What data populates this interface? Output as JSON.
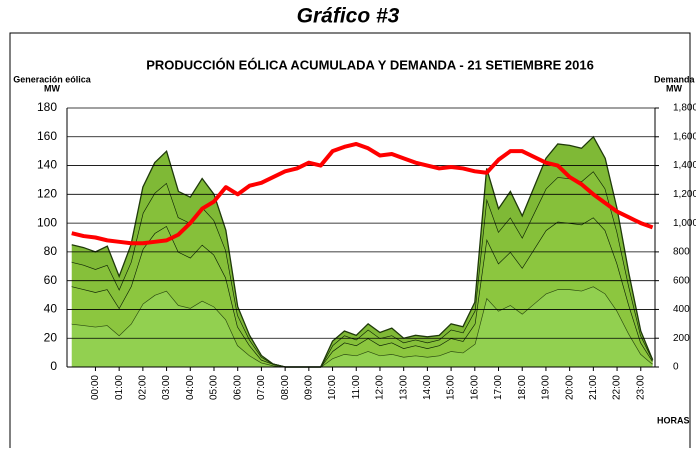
{
  "page_title": "Gráfico #3",
  "chart_data": {
    "type": "stacked-area-line",
    "title": "PRODUCCIÓN EÓLICA ACUMULADA Y DEMANDA - 21 SETIEMBRE 2016",
    "y_label": [
      "Generación eólica",
      "MW"
    ],
    "y2_label": [
      "Demanda",
      "MW"
    ],
    "x_label": "HORAS",
    "x": [
      -1,
      -0.5,
      0,
      0.5,
      1,
      1.5,
      2,
      2.5,
      3,
      3.5,
      4,
      4.5,
      5,
      5.5,
      6,
      6.5,
      7,
      7.5,
      8,
      8.5,
      9,
      9.5,
      10,
      10.5,
      11,
      11.5,
      12,
      12.5,
      13,
      13.5,
      14,
      14.5,
      15,
      15.5,
      16,
      16.5,
      17,
      17.5,
      18,
      18.5,
      19,
      19.5,
      20,
      20.5,
      21,
      21.5,
      22,
      22.5,
      23,
      23.5
    ],
    "xlim": [
      -1.2,
      23.6
    ],
    "xticks": [
      {
        "value": 0,
        "label": "00:00"
      },
      {
        "value": 1,
        "label": "01:00"
      },
      {
        "value": 2,
        "label": "02:00"
      },
      {
        "value": 3,
        "label": "03:00"
      },
      {
        "value": 4,
        "label": "04:00"
      },
      {
        "value": 5,
        "label": "05:00"
      },
      {
        "value": 6,
        "label": "06:00"
      },
      {
        "value": 7,
        "label": "07:00"
      },
      {
        "value": 8,
        "label": "08:00"
      },
      {
        "value": 9,
        "label": "09:00"
      },
      {
        "value": 10,
        "label": "10:00"
      },
      {
        "value": 11,
        "label": "11:00"
      },
      {
        "value": 12,
        "label": "12:00"
      },
      {
        "value": 13,
        "label": "13:00"
      },
      {
        "value": 14,
        "label": "14:00"
      },
      {
        "value": 15,
        "label": "15:00"
      },
      {
        "value": 16,
        "label": "16:00"
      },
      {
        "value": 17,
        "label": "17:00"
      },
      {
        "value": 18,
        "label": "18:00"
      },
      {
        "value": 19,
        "label": "19:00"
      },
      {
        "value": 20,
        "label": "20:00"
      },
      {
        "value": 21,
        "label": "21:00"
      },
      {
        "value": 22,
        "label": "22:00"
      },
      {
        "value": 23,
        "label": "23:00"
      }
    ],
    "ylim": [
      0,
      180
    ],
    "yticks": [
      0,
      20,
      40,
      60,
      80,
      100,
      120,
      140,
      160,
      180
    ],
    "y2lim": [
      0,
      1800
    ],
    "y2ticks": [
      0,
      200,
      400,
      600,
      800,
      {
        "value": 1000,
        "label": "1,000"
      },
      {
        "value": 1200,
        "label": "1,200"
      },
      {
        "value": 1400,
        "label": "1,400"
      },
      {
        "value": 1600,
        "label": "1,600"
      },
      {
        "value": 1800,
        "label": "1,800"
      }
    ],
    "grid": true,
    "series": [
      {
        "color": "#92d050",
        "line_color": "#2b4a10",
        "values": [
          30,
          29,
          28,
          29,
          22,
          30,
          44,
          50,
          53,
          43,
          41,
          46,
          42,
          33,
          15,
          8,
          3,
          1,
          0,
          0,
          0,
          0,
          6,
          9,
          8,
          11,
          8,
          9,
          7,
          8,
          7,
          8,
          11,
          10,
          16,
          48,
          39,
          43,
          37,
          44,
          51,
          54,
          54,
          53,
          56,
          51,
          39,
          23,
          9,
          2
        ]
      },
      {
        "color": "#8cc63f",
        "line_color": "#0f2405",
        "values": [
          26,
          25,
          24,
          25,
          19,
          26,
          38,
          43,
          45,
          37,
          35,
          39,
          36,
          29,
          13,
          7,
          2,
          1,
          0,
          0,
          0,
          0,
          5,
          8,
          7,
          9,
          7,
          8,
          6,
          7,
          6,
          7,
          9,
          8,
          14,
          41,
          33,
          37,
          32,
          38,
          44,
          47,
          46,
          46,
          48,
          44,
          33,
          20,
          8,
          2
        ]
      },
      {
        "color": "#86c03a",
        "line_color": "#0f2405",
        "values": [
          17,
          17,
          16,
          17,
          13,
          17,
          25,
          28,
          30,
          24,
          24,
          26,
          24,
          19,
          8,
          4,
          2,
          0,
          0,
          0,
          0,
          0,
          4,
          5,
          4,
          6,
          5,
          5,
          4,
          4,
          4,
          4,
          6,
          6,
          9,
          28,
          22,
          24,
          21,
          25,
          29,
          31,
          31,
          30,
          32,
          29,
          22,
          13,
          5,
          1
        ]
      },
      {
        "color": "#7fb936",
        "line_color": "#1f3a0a",
        "values": [
          12,
          12,
          12,
          13,
          9,
          12,
          18,
          21,
          22,
          18,
          18,
          20,
          18,
          14,
          6,
          3,
          1,
          0,
          0,
          0,
          0,
          0,
          3,
          3,
          3,
          4,
          4,
          5,
          3,
          3,
          4,
          3,
          4,
          4,
          6,
          21,
          16,
          18,
          15,
          18,
          21,
          23,
          23,
          23,
          24,
          21,
          16,
          9,
          3,
          0
        ]
      },
      {
        "axis": "y2",
        "color": "#ff0000",
        "values": [
          930,
          910,
          900,
          880,
          870,
          860,
          860,
          870,
          880,
          920,
          1000,
          1100,
          1150,
          1250,
          1200,
          1260,
          1280,
          1320,
          1360,
          1380,
          1420,
          1400,
          1500,
          1530,
          1550,
          1520,
          1470,
          1480,
          1450,
          1420,
          1400,
          1380,
          1390,
          1380,
          1360,
          1350,
          1440,
          1500,
          1500,
          1460,
          1420,
          1400,
          1320,
          1270,
          1200,
          1140,
          1080,
          1040,
          1000,
          970
        ]
      }
    ]
  }
}
